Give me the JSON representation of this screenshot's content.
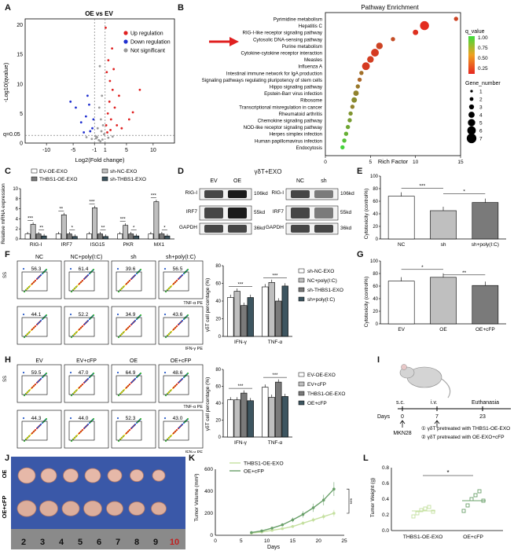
{
  "panels": {
    "A": {
      "label": "A",
      "title": "OE vs EV",
      "xlabel": "Log2(Fold change)",
      "ylabel": "-Log10(qvalue)",
      "q_marker": "q=0.05",
      "xticks": [
        "-10",
        "-5",
        "-1",
        "1",
        "5",
        "10"
      ],
      "yticks": [
        "0",
        "5",
        "10",
        "15",
        "20"
      ],
      "legend": [
        {
          "name": "Up regulation",
          "color": "#e02020"
        },
        {
          "name": "Down regulation",
          "color": "#2030d0"
        },
        {
          "name": "Not significant",
          "color": "#9a9a9a"
        }
      ]
    },
    "B": {
      "label": "B",
      "title": "Pathway Enrichment",
      "xlabel": "Rich Factor",
      "xticks": [
        "0",
        "5",
        "10",
        "15"
      ],
      "legend_q_title": "q_value",
      "legend_q_ticks": [
        "1.00",
        "0.75",
        "0.50",
        "0.25"
      ],
      "legend_gene_title": "Gene_number",
      "legend_gene_ticks": [
        "1",
        "2",
        "3",
        "4",
        "5",
        "6",
        "7"
      ]
    },
    "C": {
      "label": "C",
      "ylabel": "Relative mRNA expression",
      "yticks": [
        "0",
        "2",
        "4",
        "6",
        "8",
        "10"
      ],
      "legend": [
        "EV-OE-EXO",
        "sh-NC-EXO",
        "THBS1-OE-EXO",
        "sh-THBS1-EXO"
      ]
    },
    "D": {
      "label": "D",
      "title": "γδT+EXO",
      "groups_left": [
        "EV",
        "OE"
      ],
      "groups_right": [
        "NC",
        "sh"
      ],
      "rows": [
        "RIG-I",
        "IRF7",
        "GAPDH"
      ],
      "kd": [
        "106kd",
        "55kd",
        "36kd"
      ]
    },
    "E": {
      "label": "E",
      "ylabel": "Cytotoxicity (control%)"
    },
    "F": {
      "label": "F",
      "flow_cols": [
        "NC",
        "NC+poly(I:C)",
        "sh",
        "sh+poly(I:C)"
      ],
      "top_vals": [
        "56.3",
        "61.4",
        "39.6",
        "56.5"
      ],
      "bottom_vals": [
        "44.1",
        "52.2",
        "34.9",
        "43.6"
      ],
      "axis_top": "TNF-α PE",
      "axis_bottom": "IFN-γ PE",
      "ss": "SS",
      "ylabel": "γδT cell percentage (%)",
      "xcats": [
        "IFN-γ",
        "TNF-α"
      ],
      "legend": [
        "sh-NC-EXO",
        "NC+poly(I:C)",
        "sh-THBS1-EXO",
        "sh+poly(I:C)"
      ]
    },
    "G": {
      "label": "G",
      "ylabel": "Cytotoxicity (control%)"
    },
    "H": {
      "label": "H",
      "flow_cols": [
        "EV",
        "EV+cFP",
        "OE",
        "OE+cFP"
      ],
      "top_vals": [
        "59.5",
        "47.0",
        "64.9",
        "48.6"
      ],
      "bottom_vals": [
        "44.3",
        "44.0",
        "52.3",
        "43.0"
      ],
      "axis_top": "TNF-α PE",
      "axis_bottom": "IFN-γ PE",
      "ss": "SS",
      "ylabel": "γδT cell percentage (%)",
      "xcats": [
        "IFN-γ",
        "TNF-α"
      ],
      "legend": [
        "EV-OE-EXO",
        "EV+cFP",
        "THBS1-OE-EXO",
        "OE+cFP"
      ]
    },
    "I": {
      "label": "I",
      "sc": "s.c.",
      "iv": "i.v.",
      "euth": "Euthanasia",
      "days_label": "Days",
      "days": [
        "0",
        "7",
        "23"
      ],
      "cell": "MKN28",
      "notes": [
        "① γδT pretreated with THBS1-OE-EXO",
        "② γδT pretreated with OE-EXO+cFP"
      ]
    },
    "J": {
      "label": "J",
      "row1": "OE",
      "row2": "OE+cFP",
      "ruler": [
        "2",
        "3",
        "4",
        "5",
        "6",
        "7",
        "8",
        "9",
        "10"
      ]
    },
    "K": {
      "label": "K",
      "ylabel": "Tumor Volume (mm³)",
      "xlabel": "Days",
      "sig": "***",
      "xticks": [
        "0",
        "5",
        "10",
        "15",
        "20",
        "25"
      ],
      "yticks": [
        "0",
        "200",
        "400",
        "600"
      ],
      "legend": [
        "THBS1-OE-EXO",
        "OE+cFP"
      ]
    },
    "L": {
      "label": "L",
      "ylabel": "Tumor Weight (g)",
      "sig": "*",
      "yticks": [
        "0.0",
        "0.2",
        "0.4",
        "0.6",
        "0.8"
      ],
      "xcats": [
        "THBS1-OE-EXO",
        "OE+cFP"
      ]
    }
  },
  "chart_data": [
    {
      "type": "scatter",
      "id": "A",
      "title": "OE vs EV",
      "xlim": [
        -14,
        14
      ],
      "ylim": [
        0,
        21
      ],
      "series": [
        {
          "name": "Up regulation",
          "points": [
            [
              1.2,
              3
            ],
            [
              1.5,
              5
            ],
            [
              1.8,
              7
            ],
            [
              2.1,
              4
            ],
            [
              2.4,
              9
            ],
            [
              1.3,
              12
            ],
            [
              1.6,
              14
            ],
            [
              2.8,
              6
            ],
            [
              3.2,
              3
            ],
            [
              1.1,
              19.5
            ],
            [
              2.0,
              2.2
            ],
            [
              4.1,
              2.5
            ],
            [
              5.5,
              4
            ],
            [
              7.5,
              9
            ],
            [
              2.3,
              16
            ],
            [
              1.4,
              1.8
            ],
            [
              3.6,
              8
            ],
            [
              6.2,
              5.2
            ],
            [
              1.9,
              10.5
            ],
            [
              2.6,
              12.5
            ]
          ]
        },
        {
          "name": "Down regulation",
          "points": [
            [
              -1.4,
              2.5
            ],
            [
              -2.0,
              6.5
            ],
            [
              -3.5,
              3.5
            ],
            [
              -2.6,
              4.5
            ],
            [
              -4.5,
              6
            ],
            [
              -1.8,
              2
            ],
            [
              -1.2,
              4
            ],
            [
              -3.0,
              1.8
            ],
            [
              -5.5,
              7
            ],
            [
              -2.3,
              8
            ]
          ]
        },
        {
          "name": "Not significant",
          "points": [
            [
              -0.5,
              1
            ],
            [
              0.3,
              2
            ],
            [
              -0.2,
              0.5
            ],
            [
              0.6,
              3
            ],
            [
              -0.8,
              1.2
            ],
            [
              0.1,
              0.3
            ],
            [
              0.8,
              1.5
            ],
            [
              -0.4,
              2.5
            ],
            [
              0.2,
              4
            ],
            [
              -0.7,
              0.8
            ],
            [
              0.5,
              0.6
            ],
            [
              -1.5,
              0.7
            ],
            [
              1.6,
              0.9
            ],
            [
              -2.5,
              1
            ],
            [
              2.4,
              1.1
            ],
            [
              -0.1,
              6
            ],
            [
              0.4,
              8
            ],
            [
              0.0,
              13
            ]
          ]
        }
      ]
    },
    {
      "type": "scatter",
      "id": "B",
      "title": "Pathway Enrichment",
      "xlabel": "Rich Factor",
      "xlim": [
        0,
        15
      ],
      "categories": [
        "Pyrimidine metabolism",
        "Hepatitis C",
        "RIG-I-like receptor signaling pathway",
        "Cytosolic DNA-sensing pathway",
        "Purine metabolism",
        "Cytokine-cytokine receptor interaction",
        "Measles",
        "Influenza A",
        "Intestinal immune network for IgA production",
        "Signaling pathways regulating pluripotency of stem cells",
        "Hippo signaling pathway",
        "Epstein-Barr virus infection",
        "Ribosome",
        "Transcriptional misregulation in cancer",
        "Rheumatoid arthritis",
        "Chemokine signaling pathway",
        "NOD-like receptor signaling pathway",
        "Herpes simplex infection",
        "Human papillomavirus infection",
        "Endocytosis"
      ],
      "rich": [
        14.5,
        11,
        10,
        7.5,
        6,
        5.5,
        5,
        4.5,
        4,
        3.8,
        3.6,
        3.4,
        3.2,
        3,
        2.8,
        2.7,
        2.5,
        2.3,
        2.1,
        1.9
      ],
      "q": [
        0.15,
        0.02,
        0.05,
        0.2,
        0.15,
        0.1,
        0.12,
        0.1,
        0.4,
        0.35,
        0.45,
        0.5,
        0.55,
        0.5,
        0.6,
        0.65,
        0.7,
        0.75,
        0.85,
        0.95
      ],
      "genes": [
        2,
        6,
        3,
        2,
        4,
        5,
        4,
        5,
        2,
        2,
        2,
        3,
        3,
        2,
        2,
        2,
        2,
        2,
        2,
        2
      ]
    },
    {
      "type": "bar",
      "id": "C",
      "categories": [
        "RIG-I",
        "IRF7",
        "ISG15",
        "PKR",
        "MX1"
      ],
      "ylim": [
        0,
        10
      ],
      "series": [
        {
          "name": "EV-OE-EXO",
          "values": [
            1,
            1,
            1,
            1,
            1
          ]
        },
        {
          "name": "THBS1-OE-EXO",
          "values": [
            2.9,
            4.8,
            6.2,
            2.7,
            7.4
          ]
        },
        {
          "name": "sh-NC-EXO",
          "values": [
            1,
            1,
            1,
            1,
            1
          ]
        },
        {
          "name": "sh-THBS1-EXO",
          "values": [
            0.6,
            0.5,
            0.5,
            0.6,
            0.6
          ]
        }
      ],
      "sig": [
        [
          "***",
          "**"
        ],
        [
          "**",
          "*"
        ],
        [
          "***",
          "**"
        ],
        [
          "***",
          "*"
        ],
        [
          "***",
          "*"
        ]
      ]
    },
    {
      "type": "bar",
      "id": "E",
      "categories": [
        "NC",
        "sh",
        "sh+poly(I:C)"
      ],
      "values": [
        68,
        45,
        58
      ],
      "ylim": [
        0,
        100
      ],
      "yticks": [
        "0",
        "20",
        "40",
        "60",
        "80",
        "100"
      ],
      "sig": [
        "***",
        "*"
      ]
    },
    {
      "type": "bar",
      "id": "F",
      "categories": [
        "IFN-γ",
        "TNF-α"
      ],
      "ylim": [
        0,
        80
      ],
      "yticks": [
        "0",
        "20",
        "40",
        "60",
        "80"
      ],
      "series": [
        {
          "name": "sh-NC-EXO",
          "values": [
            44,
            56
          ]
        },
        {
          "name": "NC+poly(I:C)",
          "values": [
            51,
            61
          ]
        },
        {
          "name": "sh-THBS1-EXO",
          "values": [
            35,
            40
          ]
        },
        {
          "name": "sh+poly(I:C)",
          "values": [
            44,
            57
          ]
        }
      ],
      "sig": [
        "***",
        "***",
        "***",
        "***"
      ]
    },
    {
      "type": "bar",
      "id": "G",
      "categories": [
        "EV",
        "OE",
        "OE+cFP"
      ],
      "values": [
        68,
        74,
        61
      ],
      "ylim": [
        0,
        100
      ],
      "yticks": [
        "0",
        "20",
        "40",
        "60",
        "80",
        "100"
      ],
      "sig": [
        "*",
        "**"
      ]
    },
    {
      "type": "bar",
      "id": "H",
      "categories": [
        "IFN-γ",
        "TNF-α"
      ],
      "ylim": [
        0,
        80
      ],
      "yticks": [
        "0",
        "20",
        "40",
        "60",
        "80"
      ],
      "series": [
        {
          "name": "EV-OE-EXO",
          "values": [
            44,
            59
          ]
        },
        {
          "name": "EV+cFP",
          "values": [
            44,
            47
          ]
        },
        {
          "name": "THBS1-OE-EXO",
          "values": [
            52,
            65
          ]
        },
        {
          "name": "OE+cFP",
          "values": [
            43,
            48
          ]
        }
      ],
      "sig": [
        "***",
        "***",
        "***",
        "***"
      ]
    },
    {
      "type": "line",
      "id": "K",
      "x": [
        7,
        9,
        11,
        13,
        15,
        17,
        19,
        21,
        23
      ],
      "xlim": [
        0,
        25
      ],
      "ylim": [
        0,
        600
      ],
      "series": [
        {
          "name": "THBS1-OE-EXO",
          "values": [
            20,
            30,
            45,
            60,
            80,
            110,
            140,
            170,
            200
          ]
        },
        {
          "name": "OE+cFP",
          "values": [
            25,
            40,
            65,
            95,
            140,
            190,
            250,
            320,
            420
          ]
        }
      ]
    },
    {
      "type": "scatter",
      "id": "L",
      "categories": [
        "THBS1-OE-EXO",
        "OE+cFP"
      ],
      "ylim": [
        0,
        0.8
      ],
      "series": [
        {
          "name": "THBS1-OE-EXO",
          "values": [
            0.18,
            0.22,
            0.26,
            0.28,
            0.3,
            0.24
          ]
        },
        {
          "name": "OE+cFP",
          "values": [
            0.25,
            0.32,
            0.4,
            0.45,
            0.5,
            0.38
          ]
        }
      ],
      "mean": [
        0.25,
        0.38
      ]
    }
  ],
  "colors": {
    "bar1": "#ffffff",
    "bar2": "#bfbfbf",
    "bar3": "#7a7a7a",
    "bar4": "#3d5560",
    "gelband": "#1a1a1a",
    "arrow": "#e02020",
    "green1": "#c5e0a0",
    "green2": "#6aa06a",
    "mouse": "#cfcfcf",
    "tumorbg": "#3a58a8"
  }
}
